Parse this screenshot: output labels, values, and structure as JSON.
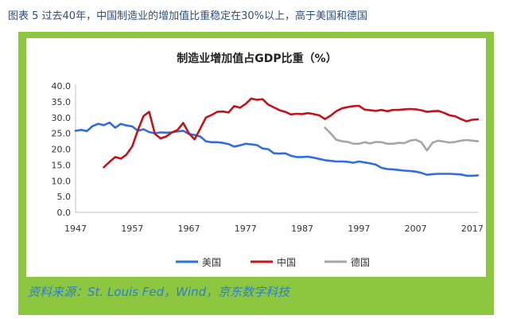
{
  "caption": "图表 5 过去40年，中国制造业的增加值比重稳定在30%以上，高于美国和德国",
  "source": "资料来源：St. Louis Fed，Wind，京东数字科技",
  "chart_data": {
    "type": "line",
    "title": "制造业增加值占GDP比重（%）",
    "xlabel": "",
    "ylabel": "",
    "xlim": [
      1947,
      2018
    ],
    "ylim": [
      0,
      40
    ],
    "x_ticks": [
      "1947",
      "1957",
      "1967",
      "1977",
      "1987",
      "1997",
      "2007",
      "2017"
    ],
    "y_ticks": [
      "0.0",
      "5.0",
      "10.0",
      "15.0",
      "20.0",
      "25.0",
      "30.0",
      "35.0",
      "40.0"
    ],
    "legend_position": "bottom",
    "series": [
      {
        "name": "美国",
        "color": "#2e6fdc",
        "x": [
          1947,
          1948,
          1949,
          1950,
          1951,
          1952,
          1953,
          1954,
          1955,
          1956,
          1957,
          1958,
          1959,
          1960,
          1961,
          1962,
          1963,
          1964,
          1965,
          1966,
          1967,
          1968,
          1969,
          1970,
          1971,
          1972,
          1973,
          1974,
          1975,
          1976,
          1977,
          1978,
          1979,
          1980,
          1981,
          1982,
          1983,
          1984,
          1985,
          1986,
          1987,
          1988,
          1989,
          1990,
          1991,
          1992,
          1993,
          1994,
          1995,
          1996,
          1997,
          1998,
          1999,
          2000,
          2001,
          2002,
          2003,
          2004,
          2005,
          2006,
          2007,
          2008,
          2009,
          2010,
          2011,
          2012,
          2013,
          2014,
          2015,
          2016,
          2017,
          2018
        ],
        "values": [
          25.8,
          26.1,
          25.7,
          27.3,
          28.0,
          27.6,
          28.4,
          26.8,
          28.0,
          27.5,
          27.2,
          25.8,
          26.3,
          25.4,
          25.0,
          25.3,
          25.2,
          25.3,
          25.6,
          25.8,
          24.8,
          24.5,
          24.0,
          22.5,
          22.2,
          22.2,
          22.0,
          21.6,
          20.8,
          21.2,
          21.7,
          21.5,
          21.3,
          20.2,
          20.0,
          18.7,
          18.6,
          18.7,
          17.9,
          17.5,
          17.5,
          17.6,
          17.3,
          16.9,
          16.5,
          16.3,
          16.1,
          16.1,
          16.0,
          15.7,
          16.1,
          15.8,
          15.5,
          15.1,
          14.1,
          13.7,
          13.6,
          13.4,
          13.2,
          13.1,
          12.9,
          12.5,
          11.9,
          12.1,
          12.2,
          12.2,
          12.2,
          12.1,
          12.0,
          11.6,
          11.6,
          11.7
        ]
      },
      {
        "name": "中国",
        "color": "#c0141c",
        "x": [
          1952,
          1953,
          1954,
          1955,
          1956,
          1957,
          1958,
          1959,
          1960,
          1961,
          1962,
          1963,
          1964,
          1965,
          1966,
          1967,
          1968,
          1969,
          1970,
          1971,
          1972,
          1973,
          1974,
          1975,
          1976,
          1977,
          1978,
          1979,
          1980,
          1981,
          1982,
          1983,
          1984,
          1985,
          1986,
          1987,
          1988,
          1989,
          1990,
          1991,
          1992,
          1993,
          1994,
          1995,
          1996,
          1997,
          1998,
          1999,
          2000,
          2001,
          2002,
          2003,
          2004,
          2005,
          2006,
          2007,
          2008,
          2009,
          2010,
          2011,
          2012,
          2013,
          2014,
          2015,
          2016,
          2017,
          2018
        ],
        "values": [
          14.3,
          16.0,
          17.5,
          17.0,
          18.3,
          20.9,
          26.0,
          30.5,
          31.8,
          24.8,
          23.4,
          24.0,
          25.3,
          26.1,
          28.3,
          25.0,
          23.1,
          26.5,
          30.0,
          30.8,
          31.8,
          31.9,
          31.6,
          33.6,
          33.1,
          34.3,
          36.0,
          35.6,
          35.8,
          34.1,
          33.2,
          32.3,
          31.8,
          31.0,
          31.2,
          31.1,
          31.4,
          31.1,
          30.7,
          29.5,
          30.6,
          32.0,
          32.9,
          33.3,
          33.6,
          33.7,
          32.5,
          32.3,
          32.1,
          32.4,
          32.0,
          32.4,
          32.4,
          32.6,
          32.7,
          32.6,
          32.3,
          31.8,
          32.0,
          32.1,
          31.5,
          30.7,
          30.4,
          29.5,
          28.8,
          29.3,
          29.4
        ]
      },
      {
        "name": "德国",
        "color": "#a6a6a6",
        "x": [
          1991,
          1992,
          1993,
          1994,
          1995,
          1996,
          1997,
          1998,
          1999,
          2000,
          2001,
          2002,
          2003,
          2004,
          2005,
          2006,
          2007,
          2008,
          2009,
          2010,
          2011,
          2012,
          2013,
          2014,
          2015,
          2016,
          2017,
          2018
        ],
        "values": [
          26.8,
          25.0,
          23.0,
          22.5,
          22.3,
          21.7,
          21.7,
          22.2,
          21.8,
          22.3,
          22.2,
          21.7,
          21.7,
          22.0,
          21.9,
          22.7,
          23.0,
          22.2,
          19.6,
          22.1,
          22.7,
          22.4,
          22.1,
          22.3,
          22.7,
          22.9,
          22.7,
          22.5
        ]
      }
    ]
  }
}
